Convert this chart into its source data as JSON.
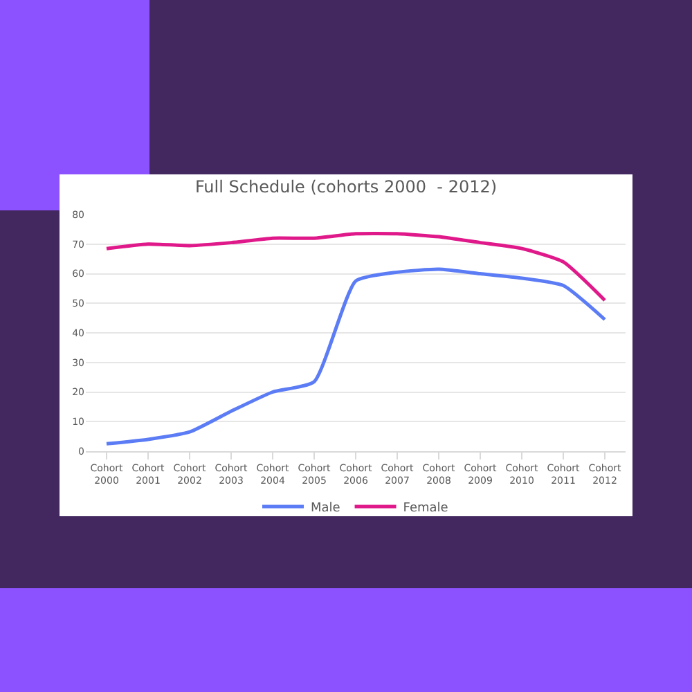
{
  "chart_data": {
    "type": "line",
    "title": "Full Schedule (cohorts 2000  - 2012)",
    "categories": [
      "Cohort 2000",
      "Cohort 2001",
      "Cohort 2002",
      "Cohort 2003",
      "Cohort 2004",
      "Cohort 2005",
      "Cohort 2006",
      "Cohort 2007",
      "Cohort 2008",
      "Cohort 2009",
      "Cohort 2010",
      "Cohort 2011",
      "Cohort 2012"
    ],
    "series": [
      {
        "name": "Male",
        "color": "#5b7cf5",
        "values": [
          2.5,
          4,
          6.5,
          13.5,
          20,
          23.5,
          57.5,
          60.5,
          61.5,
          60,
          58.5,
          56,
          44.5
        ]
      },
      {
        "name": "Female",
        "color": "#e0198a",
        "values": [
          68.5,
          70,
          69.5,
          70.5,
          72,
          72,
          73.5,
          73.5,
          72.5,
          70.5,
          68.5,
          64,
          51
        ]
      }
    ],
    "ylim": [
      0,
      80
    ],
    "yticks": [
      0,
      10,
      20,
      30,
      40,
      50,
      60,
      70,
      80
    ],
    "grid": "y",
    "legend": "bottom",
    "marker": "none",
    "line_style": "solid"
  }
}
